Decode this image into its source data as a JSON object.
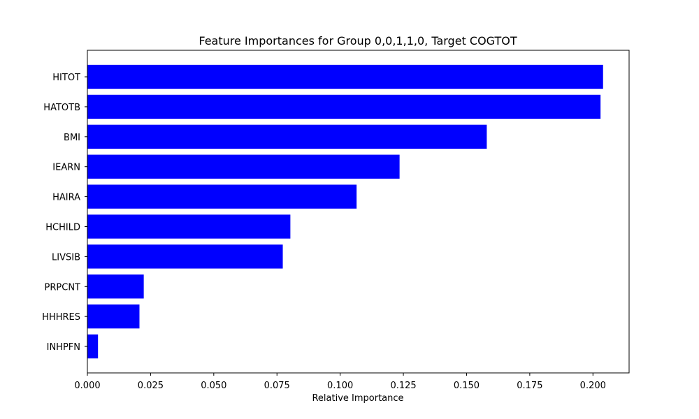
{
  "chart_data": {
    "type": "bar",
    "orientation": "horizontal",
    "title": "Feature Importances for Group 0,0,1,1,0, Target COGTOT",
    "xlabel": "Relative Importance",
    "ylabel": "",
    "categories": [
      "HITOT",
      "HATOTB",
      "BMI",
      "IEARN",
      "HAIRA",
      "HCHILD",
      "LIVSIB",
      "PRPCNT",
      "HHHRES",
      "INHPFN"
    ],
    "values": [
      0.204,
      0.203,
      0.158,
      0.1235,
      0.1065,
      0.0803,
      0.0773,
      0.0223,
      0.0206,
      0.0042
    ],
    "xlim": [
      0.0,
      0.2143
    ],
    "xticks": [
      0.0,
      0.025,
      0.05,
      0.075,
      0.1,
      0.125,
      0.15,
      0.175,
      0.2
    ],
    "xtick_labels": [
      "0.000",
      "0.025",
      "0.050",
      "0.075",
      "0.100",
      "0.125",
      "0.150",
      "0.175",
      "0.200"
    ],
    "bar_color": "#0000ff",
    "grid": false,
    "legend": "none"
  }
}
